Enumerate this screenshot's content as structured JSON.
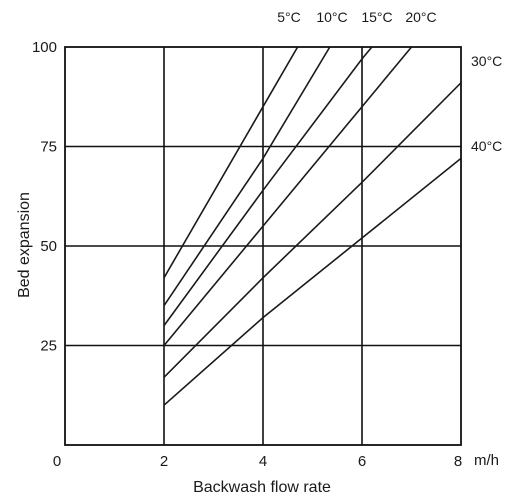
{
  "chart_data": {
    "type": "line",
    "title": "",
    "xlabel": "Backwash flow rate",
    "ylabel": "Bed expansion",
    "x_unit": "m/h",
    "xlim": [
      0,
      8
    ],
    "ylim": [
      0,
      100
    ],
    "x_ticks": [
      "0",
      "2",
      "4",
      "6",
      "8"
    ],
    "y_ticks": [
      "25",
      "50",
      "75",
      "100"
    ],
    "grid": true,
    "series": [
      {
        "name": "5°C",
        "points": [
          [
            2,
            42
          ],
          [
            4,
            85
          ],
          [
            4.7,
            100
          ]
        ]
      },
      {
        "name": "10°C",
        "points": [
          [
            2,
            35
          ],
          [
            4,
            72
          ],
          [
            5.35,
            100
          ]
        ]
      },
      {
        "name": "15°C",
        "points": [
          [
            2,
            30
          ],
          [
            4,
            64
          ],
          [
            6,
            97
          ],
          [
            6.2,
            100
          ]
        ]
      },
      {
        "name": "20°C",
        "points": [
          [
            2,
            25
          ],
          [
            4,
            55
          ],
          [
            6,
            85
          ],
          [
            7,
            100
          ]
        ]
      },
      {
        "name": "30°C",
        "points": [
          [
            2,
            17
          ],
          [
            4,
            42
          ],
          [
            6,
            66
          ],
          [
            8,
            91
          ]
        ]
      },
      {
        "name": "40°C",
        "points": [
          [
            2,
            10
          ],
          [
            4,
            32
          ],
          [
            6,
            52
          ],
          [
            8,
            72
          ]
        ]
      }
    ]
  }
}
